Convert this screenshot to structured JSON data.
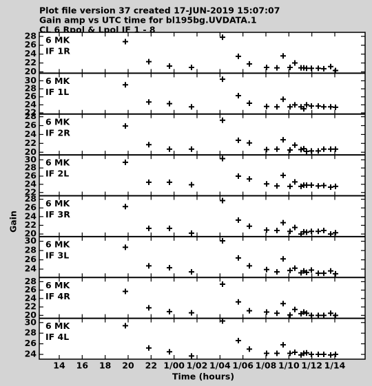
{
  "title": [
    "Plot file version 37  created 17-JUN-2019 15:07:07",
    "Gain amp vs UTC time for bl195bg.UVDATA.1",
    "CL 6  Rpol & Lpol  IF 1 - 8"
  ],
  "xlabel": "Time (hours)",
  "ylabel": "Gain",
  "x": [
    19.76,
    21.8,
    23.6,
    25.52,
    28.22,
    29.6,
    30.56,
    32.06,
    32.96,
    33.5,
    34.1,
    34.52,
    35.06,
    35.3,
    35.54,
    35.96,
    36.56,
    37.04,
    37.64,
    38.06
  ],
  "xlim": [
    12.26,
    40.64
  ],
  "xticks": [
    14,
    16,
    18,
    20,
    22,
    {
      "value": 24,
      "label": "1/00"
    },
    {
      "value": 26,
      "label": "1/02"
    },
    {
      "value": 28,
      "label": "1/04"
    },
    {
      "value": 30,
      "label": "1/06"
    },
    {
      "value": 32,
      "label": "1/08"
    },
    {
      "value": 34,
      "label": "1/10"
    },
    {
      "value": 36,
      "label": "1/12"
    },
    {
      "value": 38,
      "label": "1/14"
    }
  ],
  "chart_data": [
    {
      "type": "scatter",
      "annotation": [
        "6 MK",
        "IF 1R"
      ],
      "color": "#000000",
      "ylim": [
        19.7,
        28.9
      ],
      "yticks": [
        20,
        22,
        24,
        26,
        28
      ],
      "values": [
        26.8,
        22.3,
        21.3,
        21.0,
        27.8,
        23.5,
        21.8,
        21.0,
        20.9,
        23.6,
        21.0,
        22.0,
        20.9,
        20.9,
        20.8,
        20.8,
        20.8,
        20.7,
        21.2,
        20.3
      ]
    },
    {
      "type": "scatter",
      "annotation": [
        "6 MK",
        "IF 1L"
      ],
      "color": "#000000",
      "ylim": [
        21.7,
        31.9
      ],
      "yticks": [
        22,
        24,
        26,
        28,
        30
      ],
      "values": [
        29.0,
        24.7,
        24.3,
        23.5,
        30.4,
        26.3,
        24.4,
        23.6,
        23.5,
        25.4,
        23.5,
        24.0,
        23.5,
        23.0,
        24.0,
        23.7,
        23.7,
        23.5,
        23.5,
        23.4
      ]
    },
    {
      "type": "scatter",
      "annotation": [
        "6 MK",
        "IF 2R"
      ],
      "color": "#000000",
      "ylim": [
        19.4,
        28.6
      ],
      "yticks": [
        20,
        22,
        24,
        26,
        28
      ],
      "values": [
        25.9,
        21.7,
        20.7,
        20.7,
        27.2,
        22.7,
        22.1,
        20.6,
        20.7,
        22.8,
        20.5,
        21.6,
        20.6,
        20.8,
        20.2,
        20.3,
        20.3,
        20.7,
        20.7,
        20.7
      ]
    },
    {
      "type": "scatter",
      "annotation": [
        "6 MK",
        "IF 2L"
      ],
      "color": "#000000",
      "ylim": [
        21.2,
        31.2
      ],
      "yticks": [
        22,
        24,
        26,
        28,
        30
      ],
      "values": [
        29.4,
        24.5,
        24.5,
        23.9,
        30.3,
        26.0,
        25.3,
        24.1,
        23.6,
        26.2,
        23.5,
        24.6,
        23.5,
        23.8,
        23.8,
        23.8,
        23.6,
        23.7,
        23.3,
        23.5
      ]
    },
    {
      "type": "scatter",
      "annotation": [
        "6 MK",
        "IF 3R"
      ],
      "color": "#000000",
      "ylim": [
        19.4,
        28.8
      ],
      "yticks": [
        20,
        22,
        24,
        26,
        28
      ],
      "values": [
        26.3,
        21.3,
        21.3,
        20.2,
        27.7,
        23.2,
        21.8,
        20.9,
        20.8,
        22.6,
        20.6,
        21.5,
        20.0,
        20.5,
        20.4,
        20.6,
        20.6,
        20.8,
        20.0,
        20.3
      ]
    },
    {
      "type": "scatter",
      "annotation": [
        "6 MK",
        "IF 3L"
      ],
      "color": "#000000",
      "ylim": [
        22.2,
        31.0
      ],
      "yticks": [
        24,
        26,
        28,
        30
      ],
      "values": [
        28.7,
        24.7,
        24.3,
        23.4,
        30.1,
        26.4,
        24.7,
        23.9,
        23.4,
        26.2,
        23.7,
        24.2,
        23.2,
        23.6,
        23.3,
        23.8,
        23.1,
        23.1,
        23.6,
        23.0
      ]
    },
    {
      "type": "scatter",
      "annotation": [
        "6 MK",
        "IF 4R"
      ],
      "color": "#000000",
      "ylim": [
        19.3,
        29.0
      ],
      "yticks": [
        20,
        22,
        24,
        26,
        28
      ],
      "values": [
        25.7,
        21.8,
        20.9,
        20.6,
        27.4,
        23.2,
        21.1,
        20.8,
        20.5,
        22.8,
        20.1,
        21.4,
        20.4,
        20.8,
        20.5,
        20.0,
        20.0,
        20.0,
        20.5,
        20.0
      ]
    },
    {
      "type": "scatter",
      "annotation": [
        "6 MK",
        "IF 4L"
      ],
      "color": "#000000",
      "ylim": [
        23.1,
        30.8
      ],
      "yticks": [
        24,
        26,
        28,
        30
      ],
      "values": [
        29.4,
        25.2,
        24.5,
        23.7,
        30.3,
        26.6,
        25.0,
        24.2,
        24.2,
        25.8,
        24.2,
        24.4,
        23.9,
        24.2,
        24.3,
        24.0,
        24.0,
        24.0,
        23.9,
        24.0
      ]
    }
  ]
}
